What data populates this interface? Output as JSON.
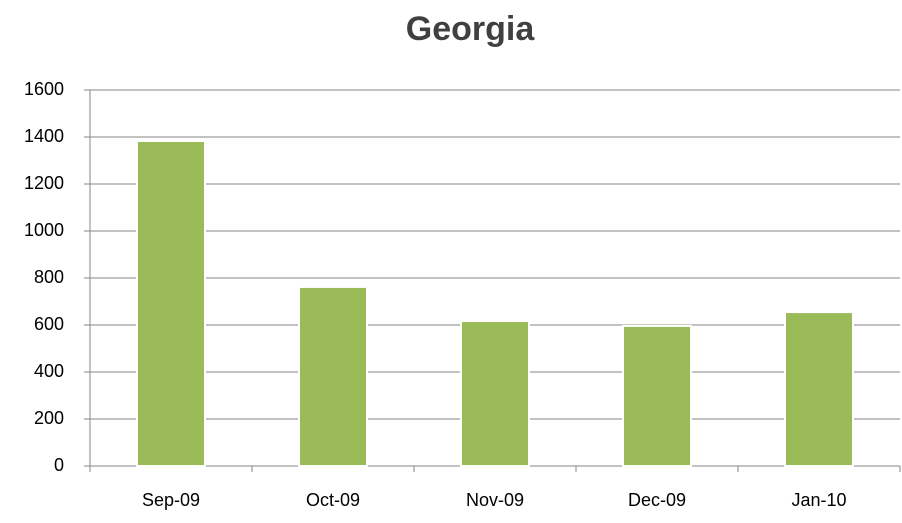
{
  "chart_data": {
    "type": "bar",
    "title": "Georgia",
    "categories": [
      "Sep-09",
      "Oct-09",
      "Nov-09",
      "Dec-09",
      "Jan-10"
    ],
    "values": [
      1383,
      762,
      617,
      596,
      655
    ],
    "color": "#9bbb59",
    "ylim": [
      0,
      1600
    ],
    "yticks": [
      0,
      200,
      400,
      600,
      800,
      1000,
      1200,
      1400,
      1600
    ],
    "grid": true
  }
}
